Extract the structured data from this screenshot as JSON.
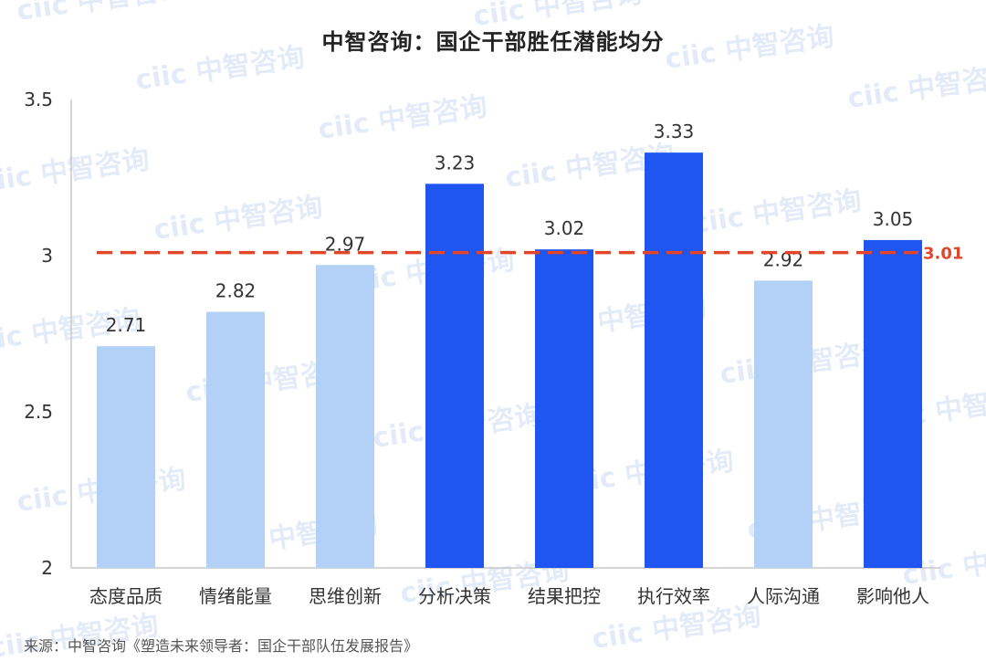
{
  "chart_data": {
    "type": "bar",
    "title": "中智咨询：国企干部胜任潜能均分",
    "categories": [
      "态度品质",
      "情绪能量",
      "思维创新",
      "分析决策",
      "结果把控",
      "执行效率",
      "人际沟通",
      "影响他人"
    ],
    "values": [
      2.71,
      2.82,
      2.97,
      3.23,
      3.02,
      3.33,
      2.92,
      3.05
    ],
    "value_labels": [
      "2.71",
      "2.82",
      "2.97",
      "3.23",
      "3.02",
      "3.33",
      "2.92",
      "3.05"
    ],
    "ylim": [
      2,
      3.5
    ],
    "yticks": [
      {
        "value": 2,
        "label": "2"
      },
      {
        "value": 2.5,
        "label": "2.5"
      },
      {
        "value": 3,
        "label": "3"
      },
      {
        "value": 3.5,
        "label": "3.5"
      }
    ],
    "xlabel": "",
    "ylabel": "",
    "grid": false,
    "reference_line": {
      "value": 3.01,
      "label": "3.01",
      "style": "dashed",
      "color": "#e2462a"
    },
    "colors": {
      "above_average": "#1f56f2",
      "below_average": "#b3d1f7",
      "axis": "#c8c8c8",
      "text": "#333333"
    }
  },
  "source": "来源：中智咨询《塑造未来领导者：国企干部队伍发展报告》",
  "watermark": {
    "logo": "ciic",
    "text": "中智咨询"
  }
}
